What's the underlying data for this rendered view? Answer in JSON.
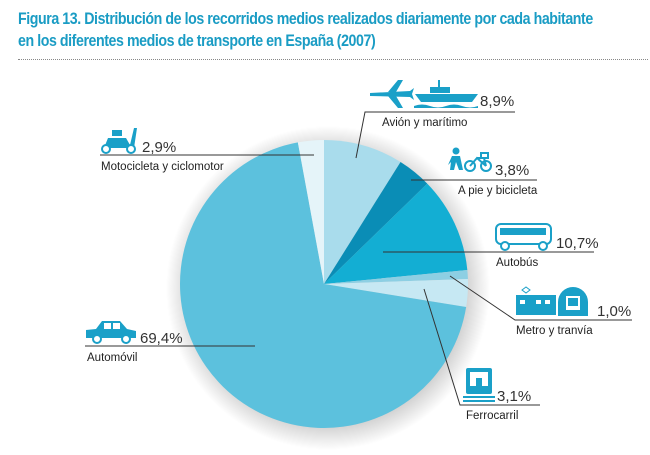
{
  "title_line1": "Figura 13. Distribución de los recorridos medios realizados diariamente por cada habitante",
  "title_line2": "en los diferentes medios de transporte en España (2007)",
  "chart_data": {
    "type": "pie",
    "title": "Figura 13. Distribución de los recorridos medios realizados diariamente por cada habitante en los diferentes medios de transporte en España (2007)",
    "unit": "%",
    "start": "top, clockwise",
    "slices": [
      {
        "label": "Avión y marítimo",
        "value": 8.9,
        "display": "8,9%",
        "color": "#a9dcec",
        "icons": [
          "airplane-icon",
          "ship-icon"
        ]
      },
      {
        "label": "A pie y bicicleta",
        "value": 3.8,
        "display": "3,8%",
        "color": "#0a8db6",
        "icons": [
          "pedestrian-icon",
          "bicycle-icon"
        ]
      },
      {
        "label": "Autobús",
        "value": 10.7,
        "display": "10,7%",
        "color": "#13aed3",
        "icons": [
          "bus-icon"
        ]
      },
      {
        "label": "Metro y tranvía",
        "value": 1.0,
        "display": "1,0%",
        "color": "#8dcfe3",
        "icons": [
          "tram-icon",
          "metro-icon"
        ]
      },
      {
        "label": "Ferrocarril",
        "value": 3.1,
        "display": "3,1%",
        "color": "#c6e8f3",
        "icons": [
          "train-icon"
        ]
      },
      {
        "label": "Automóvil",
        "value": 69.4,
        "display": "69,4%",
        "color": "#5cc1dd",
        "icons": [
          "car-icon"
        ]
      },
      {
        "label": "Motocicleta y ciclomotor",
        "value": 2.9,
        "display": "2,9%",
        "color": "#e5f4f9",
        "icons": [
          "scooter-icon"
        ]
      }
    ]
  }
}
